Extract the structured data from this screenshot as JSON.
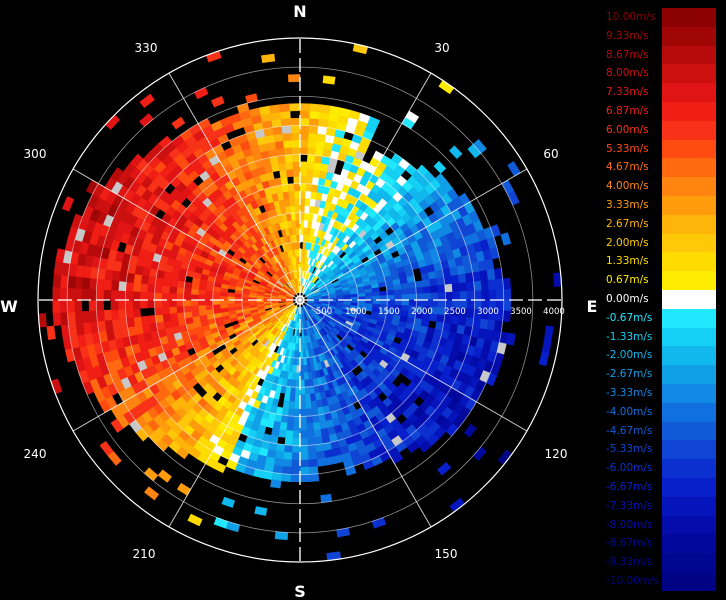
{
  "chart_data": {
    "type": "polar-heatmap",
    "title": "",
    "directions": {
      "north": "N",
      "east": "E",
      "south": "S",
      "west": "W"
    },
    "azimuth_labels": [
      "30",
      "60",
      "120",
      "150",
      "210",
      "240",
      "300",
      "330"
    ],
    "range_labels": [
      "500",
      "1000",
      "1500",
      "2000",
      "2500",
      "3000",
      "3500",
      "4000"
    ],
    "range_max": 4500,
    "colorbar": {
      "unit": "m/s",
      "entries": [
        {
          "label": "10.00m/s",
          "value": 10.0,
          "color": "#8b0000"
        },
        {
          "label": "9.33m/s",
          "value": 9.33,
          "color": "#a00606"
        },
        {
          "label": "8.67m/s",
          "value": 8.67,
          "color": "#b70a0a"
        },
        {
          "label": "8.00m/s",
          "value": 8.0,
          "color": "#cc1010"
        },
        {
          "label": "7.33m/s",
          "value": 7.33,
          "color": "#e01414"
        },
        {
          "label": "6.87m/s",
          "value": 6.87,
          "color": "#f01e14"
        },
        {
          "label": "6.00m/s",
          "value": 6.0,
          "color": "#f83218"
        },
        {
          "label": "5.33m/s",
          "value": 5.33,
          "color": "#ff4a10"
        },
        {
          "label": "4.67m/s",
          "value": 4.67,
          "color": "#ff6a10"
        },
        {
          "label": "4.00m/s",
          "value": 4.0,
          "color": "#ff8410"
        },
        {
          "label": "3.33m/s",
          "value": 3.33,
          "color": "#ff9c0c"
        },
        {
          "label": "2.67m/s",
          "value": 2.67,
          "color": "#ffb40a"
        },
        {
          "label": "2.00m/s",
          "value": 2.0,
          "color": "#ffc808"
        },
        {
          "label": "1.33m/s",
          "value": 1.33,
          "color": "#ffdc00"
        },
        {
          "label": "0.67m/s",
          "value": 0.67,
          "color": "#ffec00"
        },
        {
          "label": "0.00m/s",
          "value": 0.0,
          "color": "#ffffff"
        },
        {
          "label": "-0.67m/s",
          "value": -0.67,
          "color": "#22e8ff"
        },
        {
          "label": "-1.33m/s",
          "value": -1.33,
          "color": "#14d0f4"
        },
        {
          "label": "-2.00m/s",
          "value": -2.0,
          "color": "#10b8ee"
        },
        {
          "label": "-2.67m/s",
          "value": -2.67,
          "color": "#10a0e8"
        },
        {
          "label": "-3.33m/s",
          "value": -3.33,
          "color": "#1088e4"
        },
        {
          "label": "-4.00m/s",
          "value": -4.0,
          "color": "#1070e0"
        },
        {
          "label": "-4.67m/s",
          "value": -4.67,
          "color": "#105ad8"
        },
        {
          "label": "-5.33m/s",
          "value": -5.33,
          "color": "#1044d4"
        },
        {
          "label": "-6.00m/s",
          "value": -6.0,
          "color": "#0c30d0"
        },
        {
          "label": "-6.67m/s",
          "value": -6.67,
          "color": "#0820cc"
        },
        {
          "label": "-7.33m/s",
          "value": -7.33,
          "color": "#0614bc"
        },
        {
          "label": "-8.00m/s",
          "value": -8.0,
          "color": "#040cac"
        },
        {
          "label": "-8.67m/s",
          "value": -8.67,
          "color": "#02089c"
        },
        {
          "label": "-9.33m/s",
          "value": -9.33,
          "color": "#000690"
        },
        {
          "label": "-10.00m/s",
          "value": -10.0,
          "color": "#000484"
        }
      ]
    },
    "field": {
      "description_note": "",
      "positive_lobe_azimuth_deg": 288,
      "negative_lobe_azimuth_deg": 120,
      "max_speed": 8.6
    },
    "colors": {
      "background": "#000000",
      "grid": "#ffffff",
      "no_data": "#000000",
      "clutter": "#c8c8c8"
    }
  }
}
